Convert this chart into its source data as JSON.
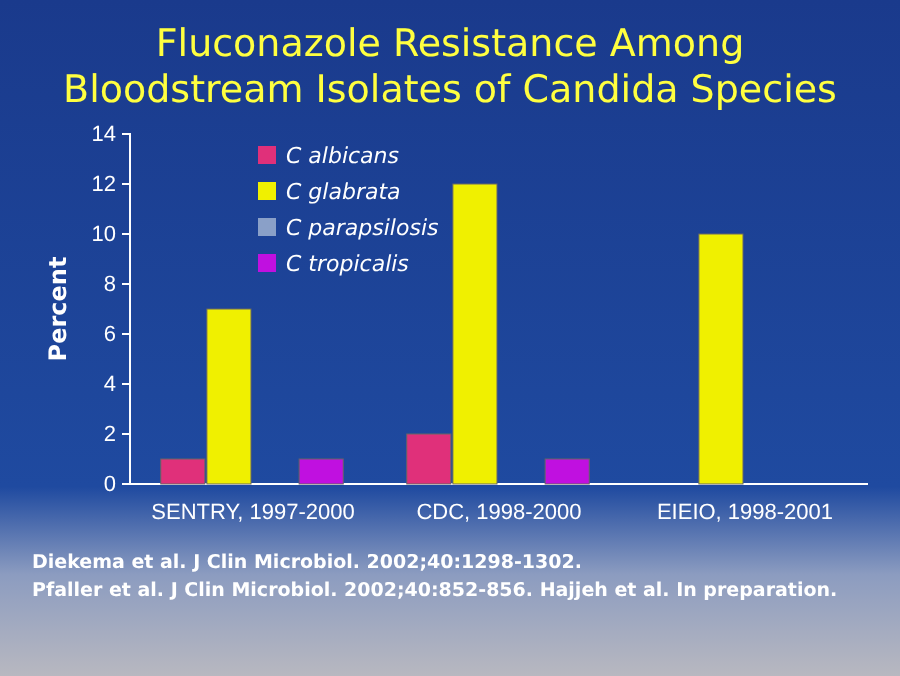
{
  "chart_data": {
    "type": "bar",
    "title": "Fluconazole Resistance Among Bloodstream Isolates of Candida Species",
    "ylabel": "Percent",
    "categories": [
      "SENTRY, 1997-2000",
      "CDC, 1998-2000",
      "EIEIO, 1998-2001"
    ],
    "series": [
      {
        "name": "C albicans",
        "color": "#e0307a",
        "values": [
          1,
          2,
          0
        ]
      },
      {
        "name": "C glabrata",
        "color": "#f0f000",
        "values": [
          7,
          12,
          10
        ]
      },
      {
        "name": "C parapsilosis",
        "color": "#8aa0c8",
        "values": [
          0,
          0,
          0
        ]
      },
      {
        "name": "C tropicalis",
        "color": "#c010e0",
        "values": [
          1,
          1,
          0
        ]
      }
    ],
    "ylim": [
      0,
      14
    ],
    "yticks": [
      0,
      2,
      4,
      6,
      8,
      10,
      12,
      14
    ],
    "legend": "top left",
    "annotations": [
      "Diekema et al. J Clin Microbiol. 2002;40:1298-1302.",
      "Pfaller et al. J Clin Microbiol. 2002;40:852-856. Hajjeh et al. In preparation."
    ]
  }
}
